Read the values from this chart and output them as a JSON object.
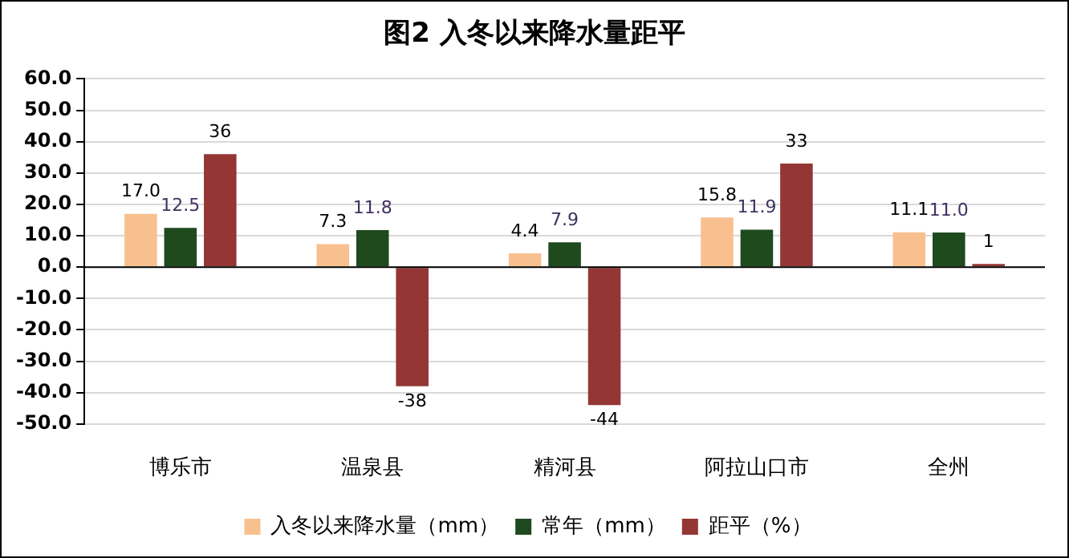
{
  "chart_data": {
    "type": "bar",
    "title": "图2  入冬以来降水量距平",
    "categories": [
      "博乐市",
      "温泉县",
      "精河县",
      "阿拉山口市",
      "全州"
    ],
    "series": [
      {
        "name": "入冬以来降水量（mm）",
        "color": "#f9c08f",
        "values": [
          17.0,
          7.3,
          4.4,
          15.8,
          11.1
        ],
        "value_labels": [
          "17.0",
          "7.3",
          "4.4",
          "15.8",
          "11.1"
        ]
      },
      {
        "name": "常年（mm）",
        "color": "#1e4a1e",
        "values": [
          12.5,
          11.8,
          7.9,
          11.9,
          11.0
        ],
        "value_labels": [
          "12.5",
          "11.8",
          "7.9",
          "11.9",
          "11.0"
        ]
      },
      {
        "name": "距平（%）",
        "color": "#943634",
        "values": [
          36,
          -38,
          -44,
          33,
          1
        ],
        "value_labels": [
          "36",
          "-38",
          "-44",
          "33",
          "1"
        ]
      }
    ],
    "ylim": [
      -50,
      60
    ],
    "yticks": [
      {
        "value": -50,
        "label": "-50.0"
      },
      {
        "value": -40,
        "label": "-40.0"
      },
      {
        "value": -30,
        "label": "-30.0"
      },
      {
        "value": -20,
        "label": "-20.0"
      },
      {
        "value": -10,
        "label": "-10.0"
      },
      {
        "value": 0,
        "label": "0.0"
      },
      {
        "value": 10,
        "label": "10.0"
      },
      {
        "value": 20,
        "label": "20.0"
      },
      {
        "value": 30,
        "label": "30.0"
      },
      {
        "value": 40,
        "label": "40.0"
      },
      {
        "value": 50,
        "label": "50.0"
      },
      {
        "value": 60,
        "label": "60.0"
      }
    ],
    "grid": "y",
    "legend": "bottom"
  }
}
